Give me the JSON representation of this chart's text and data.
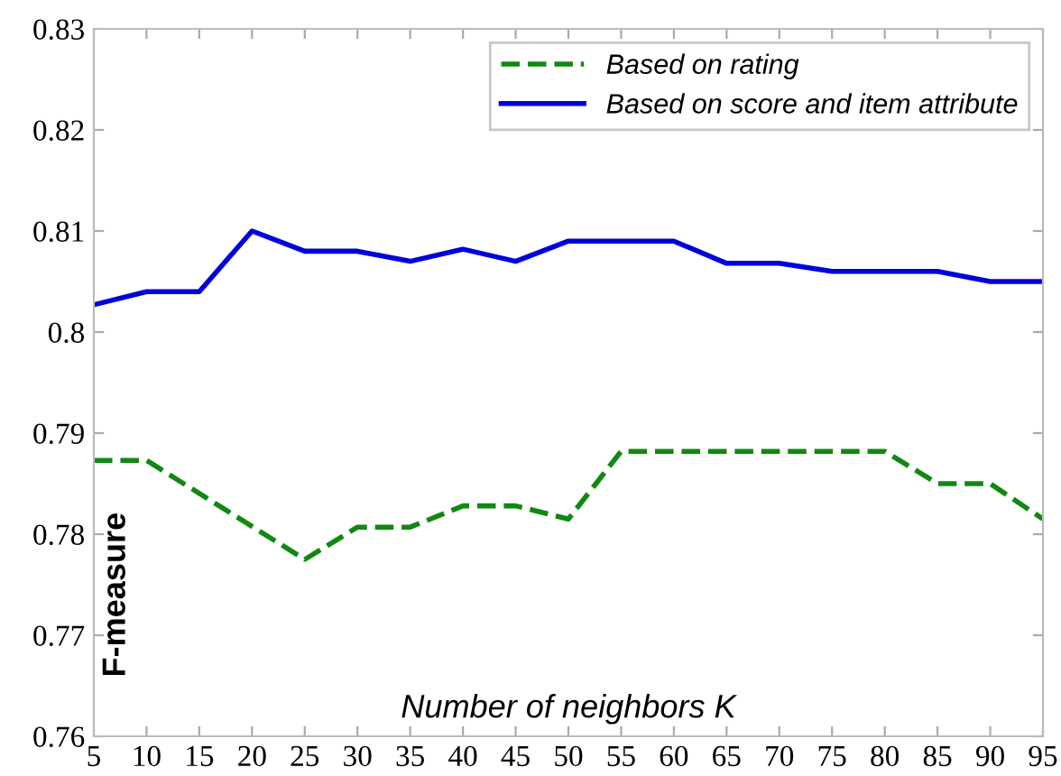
{
  "chart_data": {
    "type": "line",
    "xlabel": "Number of neighbors K",
    "ylabel": "F-measure",
    "xlim": [
      5,
      95
    ],
    "xticks": [
      5,
      10,
      15,
      20,
      25,
      30,
      35,
      40,
      45,
      50,
      55,
      60,
      65,
      70,
      75,
      80,
      85,
      90,
      95
    ],
    "ylim": [
      0.76,
      0.83
    ],
    "yticks": [
      0.76,
      0.77,
      0.78,
      0.79,
      0.8,
      0.81,
      0.82,
      0.83
    ],
    "grid": false,
    "legend": "top right",
    "marker": "none",
    "series": [
      {
        "name": "Based on rating",
        "color": "#118811",
        "line_style": "dashed",
        "x": [
          5,
          10,
          25,
          30,
          35,
          40,
          45,
          50,
          55,
          80,
          85,
          90,
          95
        ],
        "values": [
          0.7873,
          0.7873,
          0.7775,
          0.7807,
          0.7807,
          0.7828,
          0.7828,
          0.7815,
          0.7882,
          0.7882,
          0.785,
          0.785,
          0.7815
        ]
      },
      {
        "name": "Based on score and item attribute",
        "color": "#0000dd",
        "line_style": "solid",
        "x": [
          5,
          10,
          15,
          20,
          25,
          30,
          35,
          40,
          45,
          50,
          55,
          60,
          65,
          70,
          75,
          80,
          85,
          90,
          95
        ],
        "values": [
          0.8027,
          0.804,
          0.804,
          0.81,
          0.808,
          0.808,
          0.807,
          0.8082,
          0.807,
          0.809,
          0.809,
          0.809,
          0.8068,
          0.8068,
          0.806,
          0.806,
          0.806,
          0.805,
          0.805
        ]
      }
    ]
  }
}
